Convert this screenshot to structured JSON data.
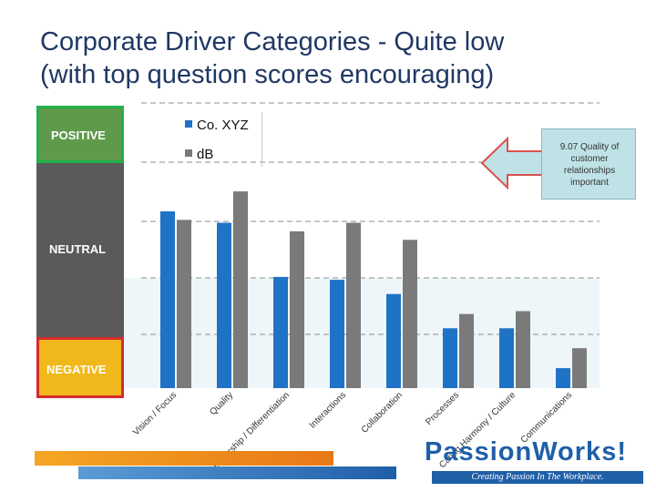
{
  "title_line1": "Corporate Driver Categories - Quite low",
  "title_line2": "(with top question scores encouraging)",
  "bands": {
    "positive": "POSITIVE",
    "neutral": "NEUTRAL",
    "negative": "NEGATIVE"
  },
  "callout": {
    "line1": "9.07 Quality of",
    "line2": "customer",
    "line3": "relationships",
    "line4": "important"
  },
  "logo": {
    "name": "PassionWorks!",
    "tagline": "Creating Passion In The Workplace."
  },
  "colors": {
    "series1": "#1f73c6",
    "series2": "#7a7a7a",
    "positive_band": "#5e9a4a",
    "neutral_band": "#5a5a5a",
    "negative_band": "#f0b81a",
    "neutral_zone": "#eef6fa",
    "callout": "#bfe2e6",
    "title": "#1f3864"
  },
  "chart_data": {
    "type": "bar",
    "title": "",
    "xlabel": "",
    "ylabel": "",
    "categories": [
      "Vision / Focus",
      "Quality",
      "Leadership / Differentiation",
      "Interactions",
      "Collaboration",
      "Processes",
      "Caring Harmony / Culture",
      "Communications"
    ],
    "series": [
      {
        "name": "Co. XYZ",
        "values": [
          62,
          58,
          39,
          38,
          33,
          21,
          21,
          7
        ]
      },
      {
        "name": "dB",
        "values": [
          59,
          69,
          55,
          58,
          52,
          26,
          27,
          14
        ]
      }
    ],
    "ylim": [
      0,
      100
    ],
    "grid": true,
    "legend": "top-left"
  }
}
